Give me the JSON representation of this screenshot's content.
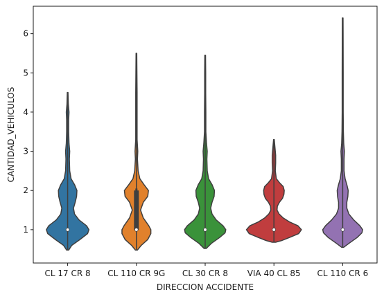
{
  "chart_data": {
    "type": "violin",
    "title": "",
    "xlabel": "DIRECCION ACCIDENTE",
    "ylabel": "CANTIDAD_VEHICULOS",
    "ylim": [
      0.15,
      6.7
    ],
    "yticks": [
      1,
      2,
      3,
      4,
      5,
      6
    ],
    "grid": false,
    "legend": "none",
    "categories": [
      "CL 17 CR 8",
      "CL 110 CR 9G",
      "CL 30 CR 8",
      "VIA 40 CL 85",
      "CL 110 CR 6"
    ],
    "series": [
      {
        "category": "CL 17 CR 8",
        "color": "#3274a1",
        "min": 0.48,
        "max": 4.5,
        "q1": 1.0,
        "median": 1.0,
        "q3": 1.0,
        "whisker_low": 1.0,
        "whisker_high": 1.0,
        "density": [
          [
            0.48,
            0.03
          ],
          [
            0.6,
            0.12
          ],
          [
            0.75,
            0.36
          ],
          [
            0.9,
            0.58
          ],
          [
            1.0,
            0.62
          ],
          [
            1.1,
            0.55
          ],
          [
            1.25,
            0.33
          ],
          [
            1.4,
            0.2
          ],
          [
            1.55,
            0.17
          ],
          [
            1.7,
            0.22
          ],
          [
            1.85,
            0.26
          ],
          [
            2.0,
            0.27
          ],
          [
            2.15,
            0.2
          ],
          [
            2.3,
            0.1
          ],
          [
            2.5,
            0.06
          ],
          [
            2.8,
            0.05
          ],
          [
            3.0,
            0.06
          ],
          [
            3.2,
            0.04
          ],
          [
            3.5,
            0.03
          ],
          [
            3.8,
            0.03
          ],
          [
            4.0,
            0.04
          ],
          [
            4.2,
            0.02
          ],
          [
            4.5,
            0.01
          ]
        ]
      },
      {
        "category": "CL 110 CR 9G",
        "color": "#e1812c",
        "min": 0.48,
        "max": 5.5,
        "q1": 1.0,
        "median": 1.0,
        "q3": 2.0,
        "whisker_low": 1.0,
        "whisker_high": 2.05,
        "density": [
          [
            0.48,
            0.03
          ],
          [
            0.6,
            0.14
          ],
          [
            0.75,
            0.33
          ],
          [
            0.9,
            0.42
          ],
          [
            1.0,
            0.42
          ],
          [
            1.1,
            0.36
          ],
          [
            1.3,
            0.2
          ],
          [
            1.5,
            0.12
          ],
          [
            1.7,
            0.2
          ],
          [
            1.85,
            0.33
          ],
          [
            2.0,
            0.35
          ],
          [
            2.15,
            0.22
          ],
          [
            2.3,
            0.1
          ],
          [
            2.5,
            0.05
          ],
          [
            2.8,
            0.03
          ],
          [
            3.0,
            0.04
          ],
          [
            3.3,
            0.02
          ],
          [
            3.8,
            0.02
          ],
          [
            4.5,
            0.02
          ],
          [
            5.0,
            0.015
          ],
          [
            5.5,
            0.01
          ]
        ]
      },
      {
        "category": "CL 30 CR 8",
        "color": "#3a923a",
        "min": 0.52,
        "max": 5.45,
        "q1": 1.0,
        "median": 1.0,
        "q3": 1.0,
        "whisker_low": 1.0,
        "whisker_high": 1.0,
        "density": [
          [
            0.52,
            0.03
          ],
          [
            0.65,
            0.18
          ],
          [
            0.8,
            0.42
          ],
          [
            0.92,
            0.58
          ],
          [
            1.0,
            0.6
          ],
          [
            1.1,
            0.52
          ],
          [
            1.25,
            0.32
          ],
          [
            1.4,
            0.2
          ],
          [
            1.55,
            0.16
          ],
          [
            1.7,
            0.2
          ],
          [
            1.85,
            0.26
          ],
          [
            2.0,
            0.27
          ],
          [
            2.15,
            0.2
          ],
          [
            2.3,
            0.1
          ],
          [
            2.5,
            0.06
          ],
          [
            2.8,
            0.05
          ],
          [
            3.0,
            0.06
          ],
          [
            3.2,
            0.04
          ],
          [
            3.5,
            0.02
          ],
          [
            4.0,
            0.02
          ],
          [
            4.5,
            0.015
          ],
          [
            5.0,
            0.015
          ],
          [
            5.45,
            0.01
          ]
        ]
      },
      {
        "category": "VIA 40 CL 85",
        "color": "#c03d3e",
        "min": 0.68,
        "max": 3.3,
        "q1": 1.0,
        "median": 1.0,
        "q3": 1.0,
        "whisker_low": 1.0,
        "whisker_high": 1.0,
        "density": [
          [
            0.68,
            0.05
          ],
          [
            0.72,
            0.22
          ],
          [
            0.8,
            0.45
          ],
          [
            0.9,
            0.72
          ],
          [
            1.0,
            0.8
          ],
          [
            1.1,
            0.7
          ],
          [
            1.2,
            0.45
          ],
          [
            1.3,
            0.27
          ],
          [
            1.4,
            0.15
          ],
          [
            1.5,
            0.09
          ],
          [
            1.6,
            0.1
          ],
          [
            1.7,
            0.16
          ],
          [
            1.8,
            0.25
          ],
          [
            1.9,
            0.29
          ],
          [
            2.0,
            0.3
          ],
          [
            2.1,
            0.27
          ],
          [
            2.2,
            0.16
          ],
          [
            2.3,
            0.07
          ],
          [
            2.5,
            0.04
          ],
          [
            2.7,
            0.05
          ],
          [
            2.9,
            0.05
          ],
          [
            3.1,
            0.03
          ],
          [
            3.3,
            0.01
          ]
        ]
      },
      {
        "category": "CL 110 CR 6",
        "color": "#9372b2",
        "min": 0.55,
        "max": 6.4,
        "q1": 1.0,
        "median": 1.0,
        "q3": 1.0,
        "whisker_low": 1.0,
        "whisker_high": 1.0,
        "density": [
          [
            0.55,
            0.03
          ],
          [
            0.65,
            0.18
          ],
          [
            0.8,
            0.42
          ],
          [
            0.92,
            0.56
          ],
          [
            1.0,
            0.58
          ],
          [
            1.1,
            0.5
          ],
          [
            1.25,
            0.32
          ],
          [
            1.4,
            0.18
          ],
          [
            1.55,
            0.12
          ],
          [
            1.7,
            0.12
          ],
          [
            1.85,
            0.15
          ],
          [
            2.0,
            0.16
          ],
          [
            2.15,
            0.12
          ],
          [
            2.3,
            0.07
          ],
          [
            2.5,
            0.04
          ],
          [
            2.8,
            0.04
          ],
          [
            3.0,
            0.05
          ],
          [
            3.2,
            0.03
          ],
          [
            3.5,
            0.02
          ],
          [
            4.0,
            0.015
          ],
          [
            5.0,
            0.015
          ],
          [
            6.0,
            0.012
          ],
          [
            6.4,
            0.01
          ]
        ]
      }
    ]
  }
}
